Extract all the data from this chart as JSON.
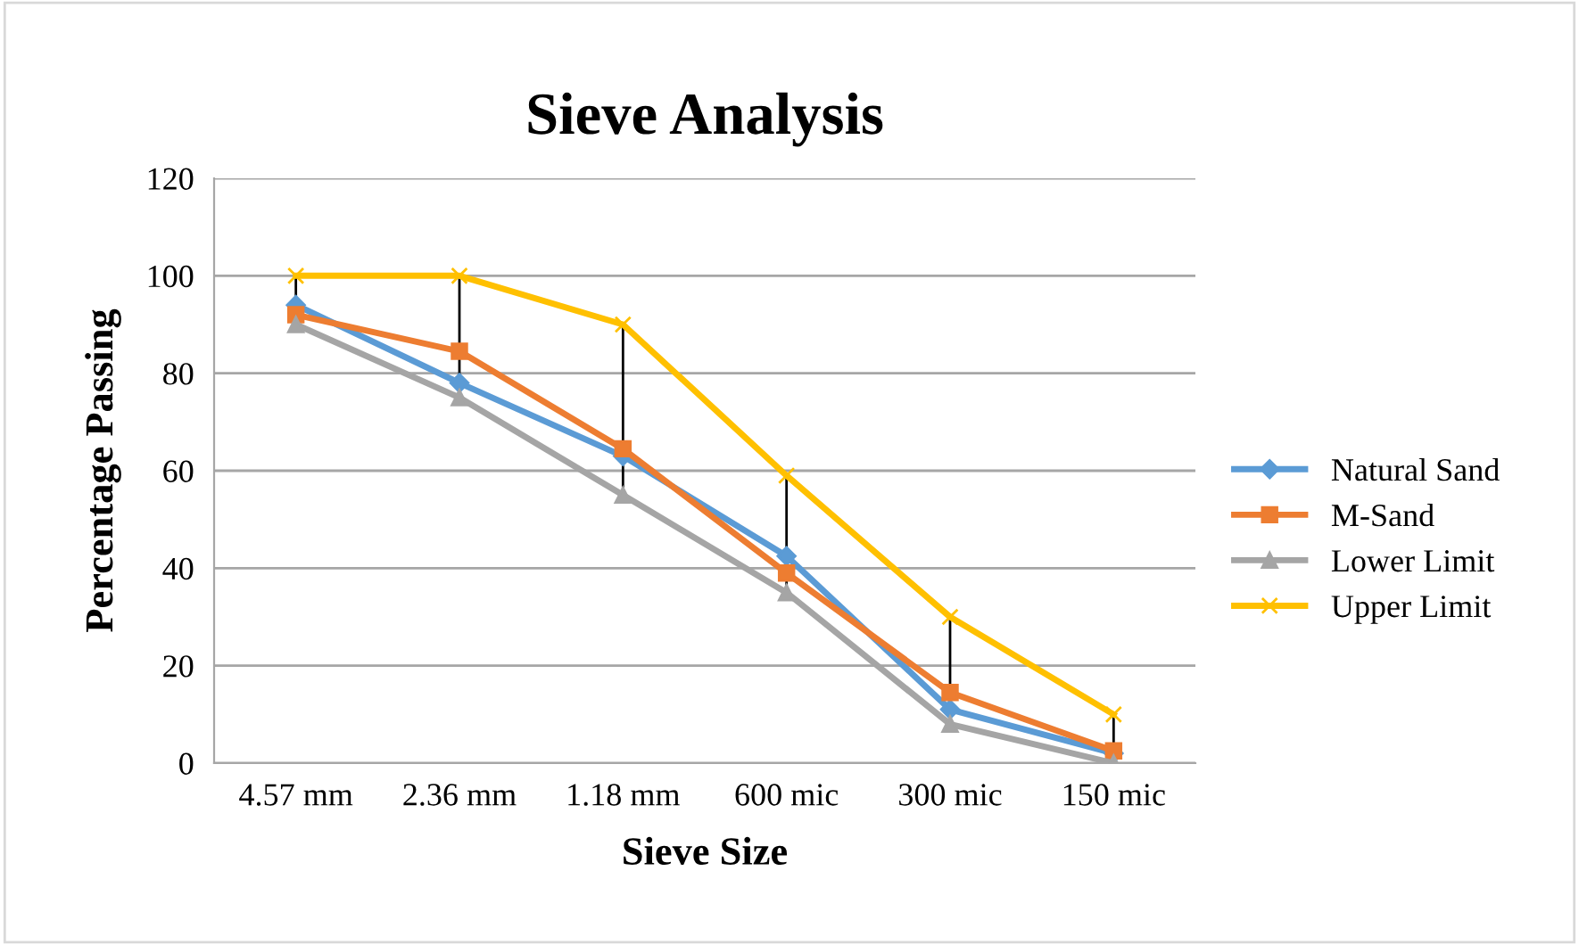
{
  "chart_data": {
    "type": "line",
    "title": "Sieve Analysis",
    "xlabel": "Sieve Size",
    "ylabel": "Percentage Passing",
    "categories": [
      "4.57 mm",
      "2.36 mm",
      "1.18 mm",
      "600 mic",
      "300 mic",
      "150 mic"
    ],
    "series": [
      {
        "name": "Natural Sand",
        "color": "#5b9bd5",
        "marker": "diamond",
        "values": [
          94,
          78,
          63,
          42.5,
          11,
          2
        ]
      },
      {
        "name": "M-Sand",
        "color": "#ed7d31",
        "marker": "square",
        "values": [
          92,
          84.5,
          64.5,
          39,
          14.5,
          2.5
        ]
      },
      {
        "name": "Lower Limit",
        "color": "#a5a5a5",
        "marker": "triangle",
        "values": [
          90,
          75,
          55,
          35,
          8,
          0
        ],
        "errors": [
          [
            90,
            100
          ],
          [
            75,
            100
          ],
          [
            55,
            90
          ],
          [
            35,
            59
          ],
          [
            8,
            30
          ],
          [
            0,
            10
          ]
        ]
      },
      {
        "name": "Upper Limit",
        "color": "#ffc000",
        "marker": "cross",
        "values": [
          100,
          100,
          90,
          59,
          30,
          10
        ]
      }
    ],
    "ylim": [
      0,
      120
    ],
    "yticks": [
      0,
      20,
      40,
      60,
      80,
      100,
      120
    ],
    "grid": "y",
    "legend": "right"
  }
}
